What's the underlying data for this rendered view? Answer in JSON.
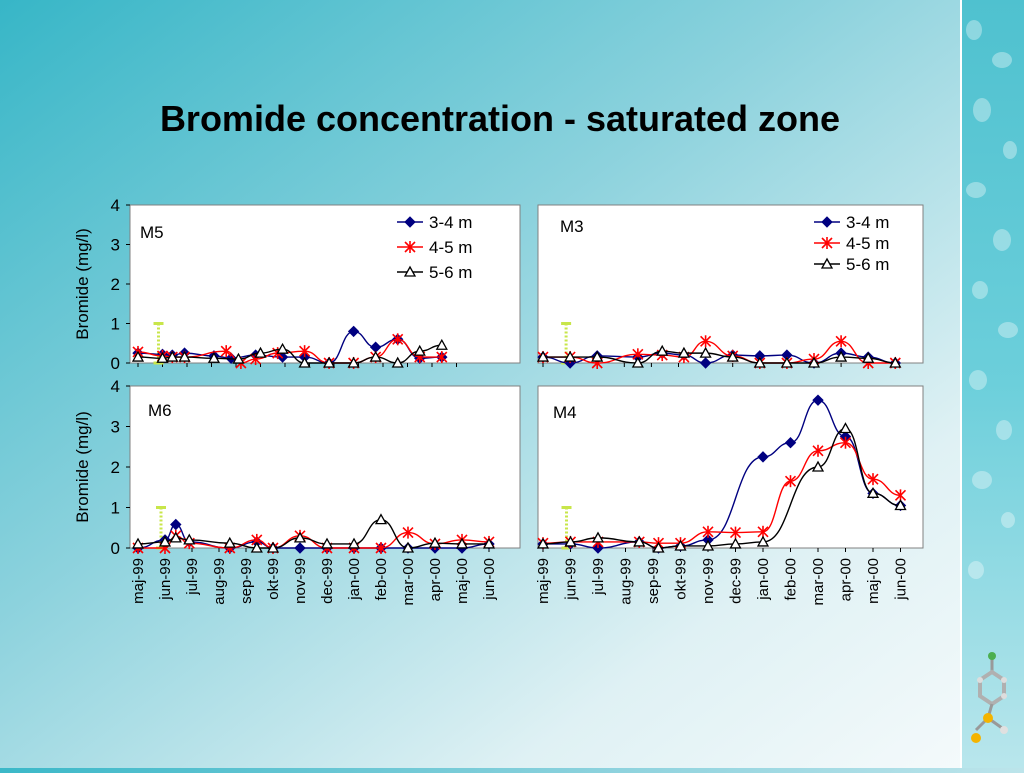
{
  "slide": {
    "title": "Bromide concentration - saturated zone"
  },
  "chart_data": [
    {
      "type": "line",
      "title": "M5",
      "xlabel": "",
      "ylabel": "Bromide (mg/l)",
      "ylim": [
        0,
        4
      ],
      "yticks": [
        "0",
        "1",
        "2",
        "3",
        "4"
      ],
      "legend": "top-right",
      "categories": [
        "maj-99",
        "jun-99",
        "jul-99",
        "aug-99",
        "sep-99",
        "okt-99",
        "nov-99",
        "dec-99",
        "jan-00",
        "feb-00",
        "mar-00",
        "apr-00",
        "maj-00",
        "jun-00"
      ],
      "series": [
        {
          "name": "3-4 m",
          "color": "#000080",
          "marker": "diamond",
          "points": [
            [
              0,
              0.25
            ],
            [
              1,
              0.22
            ],
            [
              1.4,
              0.2
            ],
            [
              1.9,
              0.25
            ],
            [
              3.1,
              0.18
            ],
            [
              3.8,
              0.12
            ],
            [
              4.8,
              0.2
            ],
            [
              5.9,
              0.15
            ],
            [
              6.8,
              0.15
            ],
            [
              7.8,
              0.0
            ],
            [
              8.8,
              0.8
            ],
            [
              9.7,
              0.4
            ],
            [
              10.6,
              0.6
            ],
            [
              11.5,
              0.12
            ],
            [
              12.4,
              0.15
            ]
          ]
        },
        {
          "name": "4-5 m",
          "color": "#ff0000",
          "marker": "x",
          "points": [
            [
              0,
              0.28
            ],
            [
              1,
              0.18
            ],
            [
              1.4,
              0.15
            ],
            [
              1.9,
              0.15
            ],
            [
              3.6,
              0.3
            ],
            [
              4.2,
              0.0
            ],
            [
              4.8,
              0.1
            ],
            [
              5.7,
              0.25
            ],
            [
              6.8,
              0.3
            ],
            [
              7.8,
              0.0
            ],
            [
              8.8,
              0.0
            ],
            [
              9.7,
              0.15
            ],
            [
              10.6,
              0.6
            ],
            [
              11.5,
              0.15
            ],
            [
              12.4,
              0.15
            ]
          ]
        },
        {
          "name": "5-6 m",
          "color": "#000000",
          "marker": "triangle",
          "points": [
            [
              0,
              0.15
            ],
            [
              1,
              0.12
            ],
            [
              1.4,
              0.15
            ],
            [
              1.9,
              0.15
            ],
            [
              3.1,
              0.12
            ],
            [
              4.1,
              0.1
            ],
            [
              5.0,
              0.25
            ],
            [
              5.9,
              0.35
            ],
            [
              6.8,
              0.0
            ],
            [
              7.8,
              0.0
            ],
            [
              8.8,
              0.0
            ],
            [
              9.7,
              0.15
            ],
            [
              10.6,
              0.0
            ],
            [
              11.5,
              0.3
            ],
            [
              12.4,
              0.45
            ]
          ]
        }
      ],
      "injection_marker": {
        "category": "jun-99",
        "value_low": 0,
        "value_high": 1,
        "color": "#c8e64a"
      }
    },
    {
      "type": "line",
      "title": "M3",
      "xlabel": "",
      "ylabel": "",
      "ylim": [
        0,
        4
      ],
      "legend": "top-right",
      "categories": [
        "maj-99",
        "jun-99",
        "jul-99",
        "aug-99",
        "sep-99",
        "okt-99",
        "nov-99",
        "dec-99",
        "jan-00",
        "feb-00",
        "mar-00",
        "apr-00",
        "maj-00",
        "jun-00"
      ],
      "series": [
        {
          "name": "3-4 m",
          "color": "#000080",
          "marker": "diamond",
          "points": [
            [
              0,
              0.15
            ],
            [
              1,
              0.0
            ],
            [
              2,
              0.18
            ],
            [
              3.5,
              0.15
            ],
            [
              4.4,
              0.25
            ],
            [
              5.2,
              0.2
            ],
            [
              6,
              0.0
            ],
            [
              7,
              0.2
            ],
            [
              8,
              0.18
            ],
            [
              9,
              0.2
            ],
            [
              10,
              0.0
            ],
            [
              11,
              0.25
            ],
            [
              12,
              0.15
            ],
            [
              13,
              0.0
            ]
          ]
        },
        {
          "name": "4-5 m",
          "color": "#ff0000",
          "marker": "x",
          "points": [
            [
              0,
              0.15
            ],
            [
              1,
              0.15
            ],
            [
              2,
              0.0
            ],
            [
              3.5,
              0.22
            ],
            [
              4.4,
              0.2
            ],
            [
              5.2,
              0.15
            ],
            [
              6,
              0.55
            ],
            [
              7,
              0.18
            ],
            [
              8,
              0.0
            ],
            [
              9,
              0.0
            ],
            [
              10,
              0.1
            ],
            [
              11,
              0.55
            ],
            [
              12,
              0.0
            ],
            [
              13,
              0.0
            ]
          ]
        },
        {
          "name": "5-6 m",
          "color": "#000000",
          "marker": "triangle",
          "points": [
            [
              0,
              0.15
            ],
            [
              1,
              0.15
            ],
            [
              2,
              0.15
            ],
            [
              3.5,
              0.0
            ],
            [
              4.4,
              0.3
            ],
            [
              5.2,
              0.25
            ],
            [
              6,
              0.25
            ],
            [
              7,
              0.15
            ],
            [
              8,
              0.0
            ],
            [
              9,
              0.0
            ],
            [
              10,
              0.0
            ],
            [
              11,
              0.15
            ],
            [
              12,
              0.12
            ],
            [
              13,
              0.0
            ]
          ]
        }
      ],
      "injection_marker": {
        "category": "jun-99",
        "value_low": 0,
        "value_high": 1,
        "color": "#c8e64a"
      }
    },
    {
      "type": "line",
      "title": "M6",
      "xlabel": "",
      "ylabel": "Bromide (mg/l)",
      "ylim": [
        0,
        4
      ],
      "yticks": [
        "0",
        "1",
        "2",
        "3",
        "4"
      ],
      "categories": [
        "maj-99",
        "jun-99",
        "jul-99",
        "aug-99",
        "sep-99",
        "okt-99",
        "nov-99",
        "dec-99",
        "jan-00",
        "feb-00",
        "mar-00",
        "apr-00",
        "maj-00",
        "jun-00"
      ],
      "series": [
        {
          "name": "3-4 m",
          "color": "#000080",
          "marker": "diamond",
          "points": [
            [
              0,
              0.0
            ],
            [
              1,
              0.2
            ],
            [
              1.4,
              0.58
            ],
            [
              1.9,
              0.15
            ],
            [
              3.4,
              0.0
            ],
            [
              4.4,
              0.15
            ],
            [
              5,
              0.0
            ],
            [
              6,
              0.0
            ],
            [
              7,
              0.0
            ],
            [
              8,
              0.0
            ],
            [
              9,
              0.0
            ],
            [
              10,
              0.0
            ],
            [
              11,
              0.0
            ],
            [
              12,
              0.0
            ],
            [
              13,
              0.1
            ]
          ]
        },
        {
          "name": "4-5 m",
          "color": "#ff0000",
          "marker": "x",
          "points": [
            [
              0,
              0.0
            ],
            [
              1,
              0.0
            ],
            [
              1.4,
              0.3
            ],
            [
              1.9,
              0.12
            ],
            [
              3.4,
              0.0
            ],
            [
              4.4,
              0.2
            ],
            [
              5,
              0.0
            ],
            [
              6,
              0.3
            ],
            [
              7,
              0.0
            ],
            [
              8,
              0.0
            ],
            [
              9,
              0.0
            ],
            [
              10,
              0.38
            ],
            [
              11,
              0.1
            ],
            [
              12,
              0.2
            ],
            [
              13,
              0.15
            ]
          ]
        },
        {
          "name": "5-6 m",
          "color": "#000000",
          "marker": "triangle",
          "points": [
            [
              0,
              0.1
            ],
            [
              1,
              0.15
            ],
            [
              1.4,
              0.25
            ],
            [
              1.9,
              0.2
            ],
            [
              3.4,
              0.12
            ],
            [
              4.4,
              0.0
            ],
            [
              5,
              0.0
            ],
            [
              6,
              0.25
            ],
            [
              7,
              0.1
            ],
            [
              8,
              0.1
            ],
            [
              9,
              0.7
            ],
            [
              10,
              0.0
            ],
            [
              11,
              0.12
            ],
            [
              12,
              0.1
            ],
            [
              13,
              0.1
            ]
          ]
        }
      ],
      "injection_marker": {
        "category": "jun-99",
        "value_low": 0,
        "value_high": 1,
        "color": "#c8e64a"
      }
    },
    {
      "type": "line",
      "title": "M4",
      "xlabel": "",
      "ylabel": "",
      "ylim": [
        0,
        4
      ],
      "categories": [
        "maj-99",
        "jun-99",
        "jul-99",
        "aug-99",
        "sep-99",
        "okt-99",
        "nov-99",
        "dec-99",
        "jan-00",
        "feb-00",
        "mar-00",
        "apr-00",
        "maj-00",
        "jun-00"
      ],
      "series": [
        {
          "name": "3-4 m",
          "color": "#000080",
          "marker": "diamond",
          "points": [
            [
              0,
              0.1
            ],
            [
              1,
              0.1
            ],
            [
              2,
              0.0
            ],
            [
              3.5,
              0.15
            ],
            [
              4.2,
              0.0
            ],
            [
              5,
              0.05
            ],
            [
              6,
              0.2
            ],
            [
              8,
              2.25
            ],
            [
              9,
              2.6
            ],
            [
              10,
              3.65
            ],
            [
              11,
              2.75
            ],
            [
              12,
              1.35
            ],
            [
              13,
              1.05
            ]
          ]
        },
        {
          "name": "4-5 m",
          "color": "#ff0000",
          "marker": "x",
          "points": [
            [
              0,
              0.12
            ],
            [
              1,
              0.15
            ],
            [
              2,
              0.15
            ],
            [
              3.5,
              0.15
            ],
            [
              4.2,
              0.12
            ],
            [
              5,
              0.12
            ],
            [
              6,
              0.4
            ],
            [
              7,
              0.38
            ],
            [
              8,
              0.4
            ],
            [
              9,
              1.65
            ],
            [
              10,
              2.4
            ],
            [
              11,
              2.6
            ],
            [
              12,
              1.7
            ],
            [
              13,
              1.3
            ]
          ]
        },
        {
          "name": "5-6 m",
          "color": "#000000",
          "marker": "triangle",
          "points": [
            [
              0,
              0.1
            ],
            [
              1,
              0.15
            ],
            [
              2,
              0.25
            ],
            [
              3.5,
              0.15
            ],
            [
              4.2,
              0.0
            ],
            [
              5,
              0.05
            ],
            [
              6,
              0.05
            ],
            [
              7,
              0.1
            ],
            [
              8,
              0.15
            ],
            [
              10,
              2.0
            ],
            [
              11,
              2.95
            ],
            [
              12,
              1.35
            ],
            [
              13,
              1.05
            ]
          ]
        }
      ],
      "injection_marker": {
        "category": "jun-99",
        "value_low": 0,
        "value_high": 1,
        "color": "#c8e64a"
      }
    }
  ]
}
